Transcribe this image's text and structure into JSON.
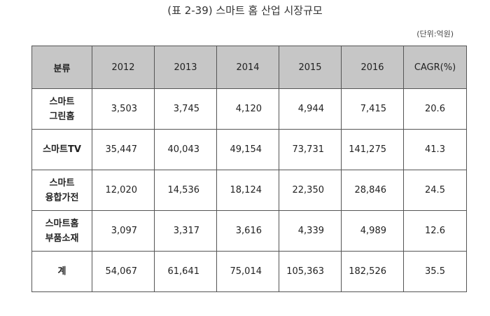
{
  "title": "(표 2-39) 스마트 홈 산업 시장규모",
  "unit": "(단위:억원)",
  "table": {
    "category_header": "분류",
    "years": [
      "2012",
      "2013",
      "2014",
      "2015",
      "2016"
    ],
    "cagr_header": "CAGR(%)",
    "rows": [
      {
        "category_lines": [
          "스마트",
          "그린홈"
        ],
        "values": [
          "3,503",
          "3,745",
          "4,120",
          "4,944",
          "7,415"
        ],
        "cagr": "20.6"
      },
      {
        "category_lines": [
          "스마트TV"
        ],
        "values": [
          "35,447",
          "40,043",
          "49,154",
          "73,731",
          "141,275"
        ],
        "cagr": "41.3"
      },
      {
        "category_lines": [
          "스마트",
          "융합가전"
        ],
        "values": [
          "12,020",
          "14,536",
          "18,124",
          "22,350",
          "28,846"
        ],
        "cagr": "24.5"
      },
      {
        "category_lines": [
          "스마트홈",
          "부품소재"
        ],
        "values": [
          "3,097",
          "3,317",
          "3,616",
          "4,339",
          "4,989"
        ],
        "cagr": "12.6"
      },
      {
        "category_lines": [
          "계"
        ],
        "values": [
          "54,067",
          "61,641",
          "75,014",
          "105,363",
          "182,526"
        ],
        "cagr": "35.5"
      }
    ]
  },
  "chart_data": {
    "type": "table",
    "title": "(표 2-39) 스마트 홈 산업 시장규모",
    "unit": "(단위:억원)",
    "columns": [
      "분류",
      "2012",
      "2013",
      "2014",
      "2015",
      "2016",
      "CAGR(%)"
    ],
    "rows": [
      [
        "스마트 그린홈",
        3503,
        3745,
        4120,
        4944,
        7415,
        20.6
      ],
      [
        "스마트TV",
        35447,
        40043,
        49154,
        73731,
        141275,
        41.3
      ],
      [
        "스마트 융합가전",
        12020,
        14536,
        18124,
        22350,
        28846,
        24.5
      ],
      [
        "스마트홈 부품소재",
        3097,
        3317,
        3616,
        4339,
        4989,
        12.6
      ],
      [
        "계",
        54067,
        61641,
        75014,
        105363,
        182526,
        35.5
      ]
    ]
  },
  "colors": {
    "header_bg": "#c6c6c6",
    "border": "#555555"
  }
}
